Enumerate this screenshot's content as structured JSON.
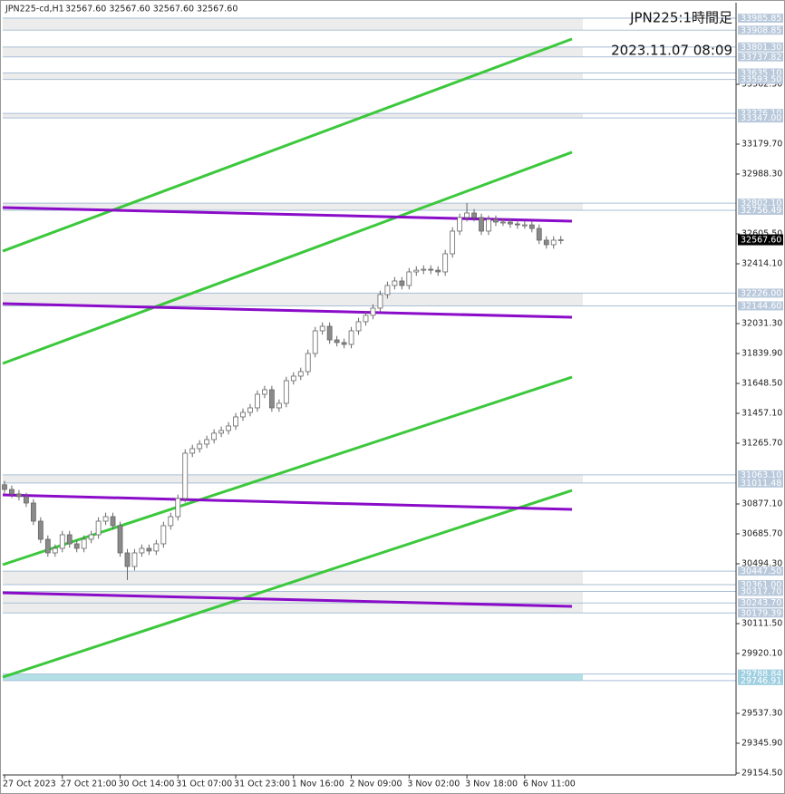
{
  "chart_data": {
    "type": "candlestick",
    "title": "JPN225-cd,H1",
    "info": "32567.60 32567.60 32567.60 32567.60",
    "annotations": [
      "JPN225:1時間足",
      "2023.11.07 08:09"
    ],
    "open": [
      31000,
      30970,
      30941,
      30924,
      30883,
      30767,
      30651,
      30564,
      30593,
      30680,
      30622,
      30593,
      30651,
      30680,
      30767,
      30796,
      30738,
      30564,
      30477,
      30564,
      30593,
      30576,
      30622,
      30738,
      30796,
      30912,
      31202,
      31231,
      31260,
      31289,
      31330,
      31347,
      31376,
      31434,
      31463,
      31492,
      31579,
      31608,
      31492,
      31521,
      31666,
      31695,
      31724,
      31840,
      31985,
      32014,
      31927,
      31910,
      31898,
      31985,
      32043,
      32084,
      32130,
      32217,
      32275,
      32304,
      32275,
      32362,
      32373,
      32379,
      32373,
      32362,
      32478,
      32623,
      32710,
      32739,
      32710,
      32623,
      32698,
      32681,
      32681,
      32669,
      32663,
      32663,
      32640,
      32565,
      32536,
      32565
    ],
    "high": [
      31025,
      30995,
      30966,
      30949,
      30908,
      30792,
      30676,
      30618,
      30705,
      30705,
      30647,
      30676,
      30705,
      30792,
      30821,
      30821,
      30763,
      30589,
      30589,
      30618,
      30618,
      30647,
      30763,
      30821,
      30937,
      31227,
      31256,
      31285,
      31314,
      31355,
      31372,
      31401,
      31459,
      31488,
      31517,
      31604,
      31633,
      31633,
      31546,
      31691,
      31720,
      31749,
      31865,
      32010,
      32039,
      32039,
      31952,
      31935,
      32010,
      32068,
      32109,
      32155,
      32242,
      32300,
      32329,
      32329,
      32387,
      32398,
      32404,
      32404,
      32398,
      32503,
      32648,
      32735,
      32802,
      32764,
      32735,
      32723,
      32723,
      32706,
      32706,
      32694,
      32688,
      32688,
      32665,
      32590,
      32590,
      32592
    ],
    "low": [
      30945,
      30916,
      30899,
      30858,
      30742,
      30626,
      30539,
      30539,
      30568,
      30597,
      30568,
      30568,
      30626,
      30655,
      30742,
      30713,
      30539,
      30390,
      30452,
      30539,
      30551,
      30551,
      30597,
      30713,
      30771,
      30887,
      31177,
      31206,
      31235,
      31264,
      31305,
      31322,
      31351,
      31409,
      31438,
      31467,
      31554,
      31467,
      31467,
      31496,
      31641,
      31670,
      31699,
      31815,
      31960,
      31902,
      31885,
      31873,
      31873,
      31960,
      32018,
      32059,
      32105,
      32192,
      32250,
      32250,
      32250,
      32337,
      32348,
      32348,
      32337,
      32337,
      32453,
      32598,
      32685,
      32685,
      32598,
      32598,
      32656,
      32656,
      32644,
      32638,
      32638,
      32615,
      32540,
      32511,
      32511,
      32540
    ],
    "close": [
      30970,
      30941,
      30924,
      30883,
      30767,
      30651,
      30564,
      30593,
      30680,
      30622,
      30593,
      30651,
      30680,
      30767,
      30796,
      30738,
      30564,
      30477,
      30564,
      30593,
      30576,
      30622,
      30738,
      30796,
      30912,
      31202,
      31231,
      31260,
      31289,
      31330,
      31347,
      31376,
      31434,
      31463,
      31492,
      31579,
      31608,
      31492,
      31521,
      31666,
      31695,
      31724,
      31840,
      31985,
      32014,
      31927,
      31910,
      31898,
      31985,
      32043,
      32084,
      32130,
      32217,
      32275,
      32304,
      32275,
      32362,
      32373,
      32379,
      32373,
      32362,
      32478,
      32623,
      32710,
      32739,
      32710,
      32623,
      32698,
      32681,
      32681,
      32669,
      32663,
      32663,
      32640,
      32565,
      32536,
      32565,
      32567.6
    ],
    "xticks": [
      {
        "value": 0,
        "label": "27 Oct 2023"
      },
      {
        "value": 8,
        "label": "27 Oct 21:00"
      },
      {
        "value": 16,
        "label": "30 Oct 14:00"
      },
      {
        "value": 24,
        "label": "31 Oct 07:00"
      },
      {
        "value": 32,
        "label": "31 Oct 23:00"
      },
      {
        "value": 40,
        "label": "1 Nov 16:00"
      },
      {
        "value": 48,
        "label": "2 Nov 09:00"
      },
      {
        "value": 56,
        "label": "3 Nov 02:00"
      },
      {
        "value": 64,
        "label": "3 Nov 18:00"
      },
      {
        "value": 72,
        "label": "6 Nov 11:00"
      }
    ],
    "ylim": [
      29142.9,
      34084.5
    ],
    "yticks": [
      {
        "value": 29154.5,
        "label": "29154.50"
      },
      {
        "value": 29345.9,
        "label": "29345.90"
      },
      {
        "value": 29537.3,
        "label": "29537.30"
      },
      {
        "value": 29920.1,
        "label": "29920.10"
      },
      {
        "value": 30111.5,
        "label": "30111.50"
      },
      {
        "value": 30494.3,
        "label": "30494.30"
      },
      {
        "value": 30685.7,
        "label": "30685.70"
      },
      {
        "value": 30877.1,
        "label": "30877.10"
      },
      {
        "value": 31265.7,
        "label": "31265.70"
      },
      {
        "value": 31457.1,
        "label": "31457.10"
      },
      {
        "value": 31648.5,
        "label": "31648.50"
      },
      {
        "value": 31839.9,
        "label": "31839.90"
      },
      {
        "value": 32031.3,
        "label": "32031.30"
      },
      {
        "value": 32414.1,
        "label": "32414.10"
      },
      {
        "value": 32605.5,
        "label": "32605.50"
      },
      {
        "value": 32988.3,
        "label": "32988.30"
      },
      {
        "value": 33179.7,
        "label": "33179.70"
      },
      {
        "value": 33562.5,
        "label": "33562.50"
      }
    ],
    "zones": [
      {
        "high": {
          "value": 33985.85,
          "label": "33985.85"
        },
        "low": {
          "value": 33908.85,
          "label": "33908.85"
        },
        "color": "#ececec"
      },
      {
        "high": {
          "value": 33801.3,
          "label": "33801.30"
        },
        "low": {
          "value": 33737.82,
          "label": "33737.82"
        },
        "color": "#ececec"
      },
      {
        "high": {
          "value": 33635.1,
          "label": "33635.10"
        },
        "low": {
          "value": 33593.5,
          "label": "33593.50"
        },
        "color": "#ececec"
      },
      {
        "high": {
          "value": 33376.1,
          "label": "33376.10"
        },
        "low": {
          "value": 33347,
          "label": "33347.00"
        },
        "color": "#ececec"
      },
      {
        "high": {
          "value": 32802.1,
          "label": "32802.10"
        },
        "low": {
          "value": 32756.49,
          "label": "32756.49"
        },
        "color": "#ececec"
      },
      {
        "high": {
          "value": 32226,
          "label": "32226.00"
        },
        "low": {
          "value": 32144.6,
          "label": "32144.60"
        },
        "color": "#ececec"
      },
      {
        "high": {
          "value": 31063.1,
          "label": "31063.10"
        },
        "low": {
          "value": 31011.48,
          "label": "31011.48"
        },
        "color": "#ececec"
      },
      {
        "high": {
          "value": 30447.5,
          "label": "30447.50"
        },
        "low": {
          "value": 30361,
          "label": "30361.00"
        },
        "color": "#ececec"
      },
      {
        "high": {
          "value": 30317.7,
          "label": "30317.70"
        },
        "low": {
          "value": 30179.39,
          "label": "30179.39"
        },
        "color": "#ececec"
      },
      {
        "high": {
          "value": 29788.84,
          "label": "29788.84"
        },
        "low": {
          "value": 29746.91,
          "label": "29746.91"
        },
        "color": "#b3e0e6"
      }
    ],
    "levels": [
      {
        "value": 30243.7,
        "label": "30243.70"
      }
    ],
    "current": {
      "value": 32567.6,
      "label": "32567.60"
    },
    "trendlines": [
      {
        "start": 32495,
        "end": 33852.5,
        "color": "#3cc83c"
      },
      {
        "start": 31776,
        "end": 33128,
        "color": "#3cc83c"
      },
      {
        "start": 30488.5,
        "end": 31689,
        "color": "#3cc83c"
      },
      {
        "start": 29769,
        "end": 30964,
        "color": "#3cc83c"
      },
      {
        "start": 32773.7,
        "end": 32686.7,
        "color": "#8a0cc8"
      },
      {
        "start": 32158.9,
        "end": 32071.9,
        "color": "#8a0cc8"
      },
      {
        "start": 30935,
        "end": 30842,
        "color": "#8a0cc8"
      },
      {
        "start": 30308.7,
        "end": 30221.7,
        "color": "#8a0cc8"
      }
    ]
  }
}
